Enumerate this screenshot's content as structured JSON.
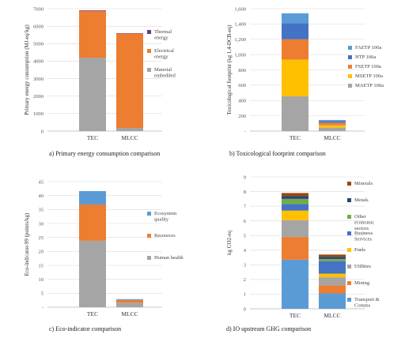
{
  "chart_data": [
    {
      "id": "a",
      "type": "bar",
      "stacked": true,
      "categories": [
        "TEC",
        "MLCC"
      ],
      "ylabel": "Primary energy consumption (MJ-eq/kg)",
      "ylim": [
        0,
        7000
      ],
      "yticks": [
        "0",
        "1000",
        "2000",
        "3000",
        "4000",
        "5000",
        "6000",
        "7000"
      ],
      "yticks_values": [
        0,
        1000,
        2000,
        3000,
        4000,
        5000,
        6000,
        7000
      ],
      "legend_position": "right",
      "series": [
        {
          "name": "Material embedded",
          "color": "#a5a5a5",
          "values": [
            4200,
            180
          ]
        },
        {
          "name": "Electrical energy",
          "color": "#ed7d31",
          "values": [
            2680,
            5400
          ]
        },
        {
          "name": "Thermal energy",
          "color": "#7030a0",
          "values": [
            30,
            20
          ]
        }
      ],
      "legend": [
        "Thermal energy",
        "Electrical energy",
        "Material embedded"
      ],
      "caption": "a)   Primary energy consumption comparison"
    },
    {
      "id": "b",
      "type": "bar",
      "stacked": true,
      "categories": [
        "TEC",
        "MLCC"
      ],
      "ylabel": "Toxicological footprint (kg 1,4-DCB-eq)",
      "ylim": [
        0,
        1600
      ],
      "yticks": [
        "-",
        "200",
        "400",
        "600",
        "800",
        "1,000",
        "1,200",
        "1,400",
        "1,600"
      ],
      "yticks_values": [
        0,
        200,
        400,
        600,
        800,
        1000,
        1200,
        1400,
        1600
      ],
      "legend_position": "right",
      "series": [
        {
          "name": "MAETP 100a",
          "color": "#a5a5a5",
          "values": [
            455,
            45
          ]
        },
        {
          "name": "MSETP 100a",
          "color": "#ffc000",
          "values": [
            480,
            30
          ]
        },
        {
          "name": "FSETP 100a",
          "color": "#ed7d31",
          "values": [
            265,
            35
          ]
        },
        {
          "name": "HTP 100a",
          "color": "#4472c4",
          "values": [
            210,
            20
          ]
        },
        {
          "name": "FAETP 100a",
          "color": "#5b9bd5",
          "values": [
            130,
            15
          ]
        }
      ],
      "legend": [
        "FAETP 100a",
        "HTP 100a",
        "FSETP 100a",
        "MSETP 100a",
        "MAETP 100a"
      ],
      "caption": "b)   Toxicological footprint comparison"
    },
    {
      "id": "c",
      "type": "bar",
      "stacked": true,
      "categories": [
        "TEC",
        "MLCC"
      ],
      "ylabel": "Eco-indicator-99 (points/kg)",
      "ylim": [
        0,
        45
      ],
      "yticks": [
        "-",
        "5",
        "10",
        "15",
        "20",
        "25",
        "30",
        "35",
        "40",
        "45"
      ],
      "yticks_values": [
        0,
        5,
        10,
        15,
        20,
        25,
        30,
        35,
        40,
        45
      ],
      "legend_position": "right",
      "series": [
        {
          "name": "Human health",
          "color": "#a5a5a5",
          "values": [
            23.8,
            1.6
          ]
        },
        {
          "name": "Resources",
          "color": "#ed7d31",
          "values": [
            13.0,
            1.0
          ]
        },
        {
          "name": "Ecosystem quality",
          "color": "#5b9bd5",
          "values": [
            4.8,
            0.3
          ]
        }
      ],
      "legend": [
        "Ecosystem quality",
        "Resources",
        "Human health"
      ],
      "caption": "c)   Eco-indicator comparison"
    },
    {
      "id": "d",
      "type": "bar",
      "stacked": true,
      "categories": [
        "TEC",
        "MLCC"
      ],
      "ylabel": "kg CO2-eq",
      "ylim": [
        0,
        9
      ],
      "yticks": [
        "0",
        "1",
        "2",
        "3",
        "4",
        "5",
        "6",
        "7",
        "8",
        "9"
      ],
      "yticks_values": [
        0,
        1,
        2,
        3,
        4,
        5,
        6,
        7,
        8,
        9
      ],
      "legend_position": "right",
      "series": [
        {
          "name": "Transport & Comms",
          "color": "#5b9bd5",
          "values": [
            3.35,
            1.05
          ]
        },
        {
          "name": "Mining",
          "color": "#ed7d31",
          "values": [
            1.55,
            0.55
          ]
        },
        {
          "name": "Utilities",
          "color": "#a5a5a5",
          "values": [
            1.15,
            0.55
          ]
        },
        {
          "name": "Fuels",
          "color": "#ffc000",
          "values": [
            0.65,
            0.25
          ]
        },
        {
          "name": "Business Services",
          "color": "#4472c4",
          "values": [
            0.45,
            0.85
          ]
        },
        {
          "name": "Other economic sectors",
          "color": "#70ad47",
          "values": [
            0.35,
            0.15
          ]
        },
        {
          "name": "Metals",
          "color": "#264478",
          "values": [
            0.2,
            0.15
          ]
        },
        {
          "name": "Minerals",
          "color": "#9e480e",
          "values": [
            0.2,
            0.15
          ]
        }
      ],
      "legend": [
        "Minerals",
        "Metals",
        "Other economic sectors",
        "Business Services",
        "Fuels",
        "Utilities",
        "Mining",
        "Transport & Comms"
      ],
      "caption": "d)   IO upstream GHG comparison"
    }
  ]
}
